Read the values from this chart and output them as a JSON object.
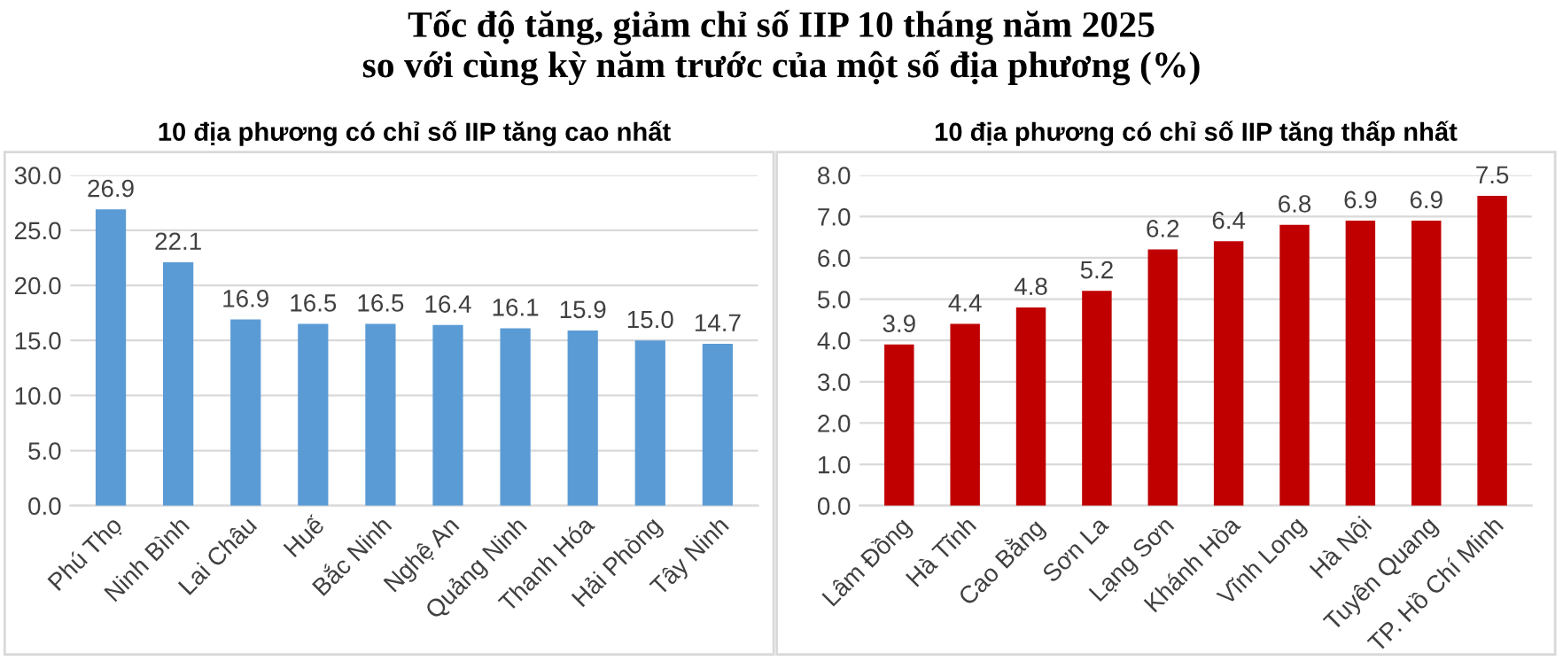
{
  "chart_data": [
    {
      "type": "bar",
      "title": "Tốc độ tăng, giảm chỉ số IIP 10 tháng năm 2025\nso với cùng kỳ năm trước của một số địa phương (%)",
      "subtitle": "10 địa phương có chỉ số IIP tăng cao nhất",
      "categories": [
        "Phú Thọ",
        "Ninh Bình",
        "Lai Châu",
        "Huế",
        "Bắc Ninh",
        "Nghệ An",
        "Quảng Ninh",
        "Thanh Hóa",
        "Hải Phòng",
        "Tây Ninh"
      ],
      "values": [
        26.9,
        22.1,
        16.9,
        16.5,
        16.5,
        16.4,
        16.1,
        15.9,
        15.0,
        14.7
      ],
      "color": "#5b9bd5",
      "ylim": [
        0,
        30
      ],
      "yticks": [
        {
          "value": 0,
          "label": "0.0"
        },
        {
          "value": 5,
          "label": "5.0"
        },
        {
          "value": 10,
          "label": "10.0"
        },
        {
          "value": 15,
          "label": "15.0"
        },
        {
          "value": 20,
          "label": "20.0"
        },
        {
          "value": 25,
          "label": "25.0"
        },
        {
          "value": 30,
          "label": "30.0"
        }
      ],
      "grid": "y",
      "value_labels": [
        "26.9",
        "22.1",
        "16.9",
        "16.5",
        "16.5",
        "16.4",
        "16.1",
        "15.9",
        "15.0",
        "14.7"
      ]
    },
    {
      "type": "bar",
      "subtitle": "10 địa phương có chỉ số IIP tăng thấp nhất",
      "categories": [
        "Lâm Đồng",
        "Hà Tĩnh",
        "Cao Bằng",
        "Sơn La",
        "Lạng Sơn",
        "Khánh Hòa",
        "Vĩnh Long",
        "Hà Nội",
        "Tuyên Quang",
        "TP. Hồ Chí Minh"
      ],
      "values": [
        3.9,
        4.4,
        4.8,
        5.2,
        6.2,
        6.4,
        6.8,
        6.9,
        6.9,
        7.5
      ],
      "color": "#c00000",
      "ylim": [
        0,
        8
      ],
      "yticks": [
        {
          "value": 0,
          "label": "0.0"
        },
        {
          "value": 1,
          "label": "1.0"
        },
        {
          "value": 2,
          "label": "2.0"
        },
        {
          "value": 3,
          "label": "3.0"
        },
        {
          "value": 4,
          "label": "4.0"
        },
        {
          "value": 5,
          "label": "5.0"
        },
        {
          "value": 6,
          "label": "6.0"
        },
        {
          "value": 7,
          "label": "7.0"
        },
        {
          "value": 8,
          "label": "8.0"
        }
      ],
      "grid": "y",
      "data_labels": true
    }
  ]
}
